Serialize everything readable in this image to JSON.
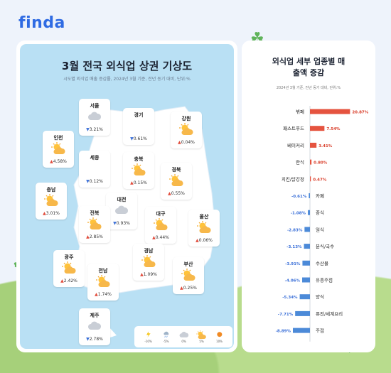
{
  "brand": "finda",
  "map": {
    "title": "3월 전국 외식업 상권 기상도",
    "subtitle": "시도별 외식업 매출 증감률, 2024년 3월 기준, 전년 동기 대비, 단위:%",
    "regions": [
      {
        "name": "서울",
        "value": "3.21%",
        "dir": "down",
        "weather": "cloud"
      },
      {
        "name": "경기",
        "value": "0.61%",
        "dir": "down",
        "weather": "none"
      },
      {
        "name": "강원",
        "value": "0.04%",
        "dir": "up",
        "weather": "sun-cloud"
      },
      {
        "name": "인천",
        "value": "4.58%",
        "dir": "up",
        "weather": "sun-cloud"
      },
      {
        "name": "세종",
        "value": "0.12%",
        "dir": "down",
        "weather": "none"
      },
      {
        "name": "충북",
        "value": "0.15%",
        "dir": "up",
        "weather": "sun-cloud"
      },
      {
        "name": "경북",
        "value": "0.55%",
        "dir": "up",
        "weather": "sun-cloud"
      },
      {
        "name": "충남",
        "value": "3.01%",
        "dir": "up",
        "weather": "sun-cloud"
      },
      {
        "name": "대전",
        "value": "0.93%",
        "dir": "down",
        "weather": "cloud"
      },
      {
        "name": "전북",
        "value": "2.85%",
        "dir": "up",
        "weather": "sun-cloud"
      },
      {
        "name": "대구",
        "value": "0.44%",
        "dir": "up",
        "weather": "sun-cloud"
      },
      {
        "name": "울산",
        "value": "0.06%",
        "dir": "up",
        "weather": "sun-cloud"
      },
      {
        "name": "광주",
        "value": "2.42%",
        "dir": "up",
        "weather": "sun-cloud"
      },
      {
        "name": "경남",
        "value": "1.09%",
        "dir": "up",
        "weather": "sun-cloud"
      },
      {
        "name": "부산",
        "value": "0.25%",
        "dir": "up",
        "weather": "sun-cloud"
      },
      {
        "name": "전남",
        "value": "1.74%",
        "dir": "up",
        "weather": "sun-cloud"
      },
      {
        "name": "제주",
        "value": "2.78%",
        "dir": "down",
        "weather": "cloud"
      }
    ],
    "legend": [
      {
        "label": "-10%",
        "icon": "thunder-icon"
      },
      {
        "label": "-5%",
        "icon": "rain-icon"
      },
      {
        "label": "0%",
        "icon": "cloud-icon"
      },
      {
        "label": "5%",
        "icon": "sun-cloud-icon"
      },
      {
        "label": "10%",
        "icon": "sun-icon"
      }
    ]
  },
  "chart_data": {
    "type": "bar",
    "title": "외식업 세부 업종별 매출액 증감",
    "subtitle": "2024년 3월 기준, 전년 동기 대비, 단위:%",
    "categories": [
      "뷔페",
      "패스트푸드",
      "베이커리",
      "한식",
      "치킨/닭강정",
      "카페",
      "중식",
      "일식",
      "분식/국수",
      "수산물",
      "유흥주점",
      "양식",
      "퓨전/세계요리",
      "주점"
    ],
    "values": [
      20.87,
      7.54,
      3.41,
      0.8,
      0.47,
      -0.61,
      -1.08,
      -2.83,
      -3.13,
      -3.91,
      -4.06,
      -5.34,
      -7.71,
      -8.89
    ],
    "labels": [
      "20.87%",
      "7.54%",
      "3.41%",
      "0.80%",
      "0.47%",
      "-0.61%",
      "-1.08%",
      "-2.83%",
      "-3.13%",
      "-3.91%",
      "-4.06%",
      "-5.34%",
      "-7.71%",
      "-8.89%"
    ],
    "colors": {
      "positive": "#e5533f",
      "negative": "#4c8ad8"
    }
  }
}
